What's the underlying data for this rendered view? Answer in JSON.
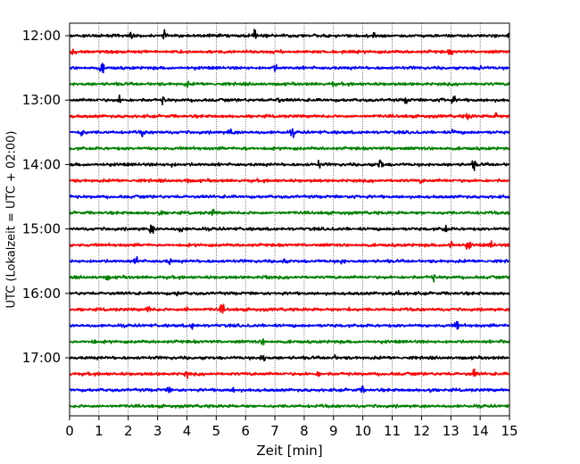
{
  "chart_data": {
    "type": "line",
    "xlabel": "Zeit  [min]",
    "ylabel": "UTC (Lokalzeit = UTC + 02:00)",
    "xlim": [
      0,
      15
    ],
    "xticks": [
      0,
      1,
      2,
      3,
      4,
      5,
      6,
      7,
      8,
      9,
      10,
      11,
      12,
      13,
      14,
      15
    ],
    "x_grid": true,
    "row_interval_minutes": 15,
    "y_tick_labels": [
      "12:00",
      "13:00",
      "14:00",
      "15:00",
      "16:00",
      "17:00"
    ],
    "y_tick_rows": [
      0,
      4,
      8,
      12,
      16,
      20
    ],
    "color_cycle": [
      "#000000",
      "#ff0000",
      "#0000ff",
      "#008000"
    ],
    "rows": [
      {
        "start": "12:00",
        "color": "#000000",
        "events": [
          [
            2.1,
            0.35
          ],
          [
            3.2,
            0.5
          ],
          [
            6.3,
            0.5
          ],
          [
            10.4,
            0.3
          ],
          [
            15.0,
            0.4
          ]
        ]
      },
      {
        "start": "12:15",
        "color": "#ff0000",
        "events": [
          [
            0.1,
            0.6
          ],
          [
            13.0,
            0.3
          ]
        ]
      },
      {
        "start": "12:30",
        "color": "#0000ff",
        "events": [
          [
            1.1,
            0.6
          ],
          [
            7.0,
            0.3
          ],
          [
            14.0,
            0.25
          ]
        ]
      },
      {
        "start": "12:45",
        "color": "#008000",
        "events": [
          [
            4.0,
            0.2
          ],
          [
            9.0,
            0.2
          ]
        ]
      },
      {
        "start": "13:00",
        "color": "#000000",
        "events": [
          [
            1.7,
            0.35
          ],
          [
            3.2,
            0.3
          ],
          [
            7.1,
            0.3
          ],
          [
            11.5,
            0.4
          ],
          [
            12.7,
            0.45
          ],
          [
            13.1,
            0.4
          ]
        ]
      },
      {
        "start": "13:15",
        "color": "#ff0000",
        "events": [
          [
            13.6,
            0.5
          ],
          [
            14.5,
            0.55
          ]
        ]
      },
      {
        "start": "13:30",
        "color": "#0000ff",
        "events": [
          [
            0.4,
            0.6
          ],
          [
            2.5,
            0.4
          ],
          [
            5.5,
            0.45
          ],
          [
            7.6,
            0.4
          ],
          [
            13.1,
            0.3
          ]
        ]
      },
      {
        "start": "13:45",
        "color": "#008000",
        "events": [
          [
            6.0,
            0.2
          ],
          [
            11.0,
            0.2
          ]
        ]
      },
      {
        "start": "14:00",
        "color": "#000000",
        "events": [
          [
            3.5,
            0.25
          ],
          [
            8.5,
            0.35
          ],
          [
            10.6,
            0.8
          ],
          [
            13.8,
            0.5
          ]
        ]
      },
      {
        "start": "14:15",
        "color": "#ff0000",
        "events": [
          [
            4.0,
            0.2
          ],
          [
            12.0,
            0.2
          ]
        ]
      },
      {
        "start": "14:30",
        "color": "#0000ff",
        "events": [
          [
            9.8,
            0.25
          ]
        ]
      },
      {
        "start": "14:45",
        "color": "#008000",
        "events": [
          [
            3.1,
            0.3
          ],
          [
            4.9,
            0.35
          ]
        ]
      },
      {
        "start": "15:00",
        "color": "#000000",
        "events": [
          [
            2.8,
            0.6
          ],
          [
            3.8,
            0.35
          ],
          [
            12.8,
            0.4
          ]
        ]
      },
      {
        "start": "15:15",
        "color": "#ff0000",
        "events": [
          [
            13.0,
            0.5
          ],
          [
            13.6,
            0.65
          ],
          [
            14.4,
            0.4
          ]
        ]
      },
      {
        "start": "15:30",
        "color": "#0000ff",
        "events": [
          [
            2.3,
            0.55
          ],
          [
            3.4,
            0.3
          ],
          [
            7.3,
            0.3
          ],
          [
            9.3,
            0.35
          ]
        ]
      },
      {
        "start": "15:45",
        "color": "#008000",
        "events": [
          [
            1.3,
            0.25
          ],
          [
            6.7,
            0.3
          ],
          [
            12.4,
            0.25
          ]
        ]
      },
      {
        "start": "16:00",
        "color": "#000000",
        "events": [
          [
            3.7,
            0.25
          ],
          [
            11.2,
            0.4
          ]
        ]
      },
      {
        "start": "16:15",
        "color": "#ff0000",
        "events": [
          [
            2.7,
            0.35
          ],
          [
            4.0,
            0.35
          ],
          [
            5.2,
            0.5
          ],
          [
            9.5,
            0.25
          ]
        ]
      },
      {
        "start": "16:30",
        "color": "#0000ff",
        "events": [
          [
            4.2,
            0.3
          ],
          [
            13.2,
            0.6
          ]
        ]
      },
      {
        "start": "16:45",
        "color": "#008000",
        "events": [
          [
            0.8,
            0.25
          ],
          [
            6.6,
            0.3
          ],
          [
            14.8,
            0.25
          ]
        ]
      },
      {
        "start": "17:00",
        "color": "#000000",
        "events": [
          [
            6.6,
            0.55
          ],
          [
            9.0,
            0.3
          ]
        ]
      },
      {
        "start": "17:15",
        "color": "#ff0000",
        "events": [
          [
            4.0,
            0.3
          ],
          [
            8.5,
            0.25
          ],
          [
            13.8,
            0.45
          ]
        ]
      },
      {
        "start": "17:30",
        "color": "#0000ff",
        "events": [
          [
            3.4,
            0.3
          ],
          [
            5.6,
            0.25
          ],
          [
            10.0,
            0.3
          ],
          [
            12.3,
            0.2
          ]
        ]
      },
      {
        "start": "17:45",
        "color": "#008000",
        "events": []
      }
    ]
  }
}
